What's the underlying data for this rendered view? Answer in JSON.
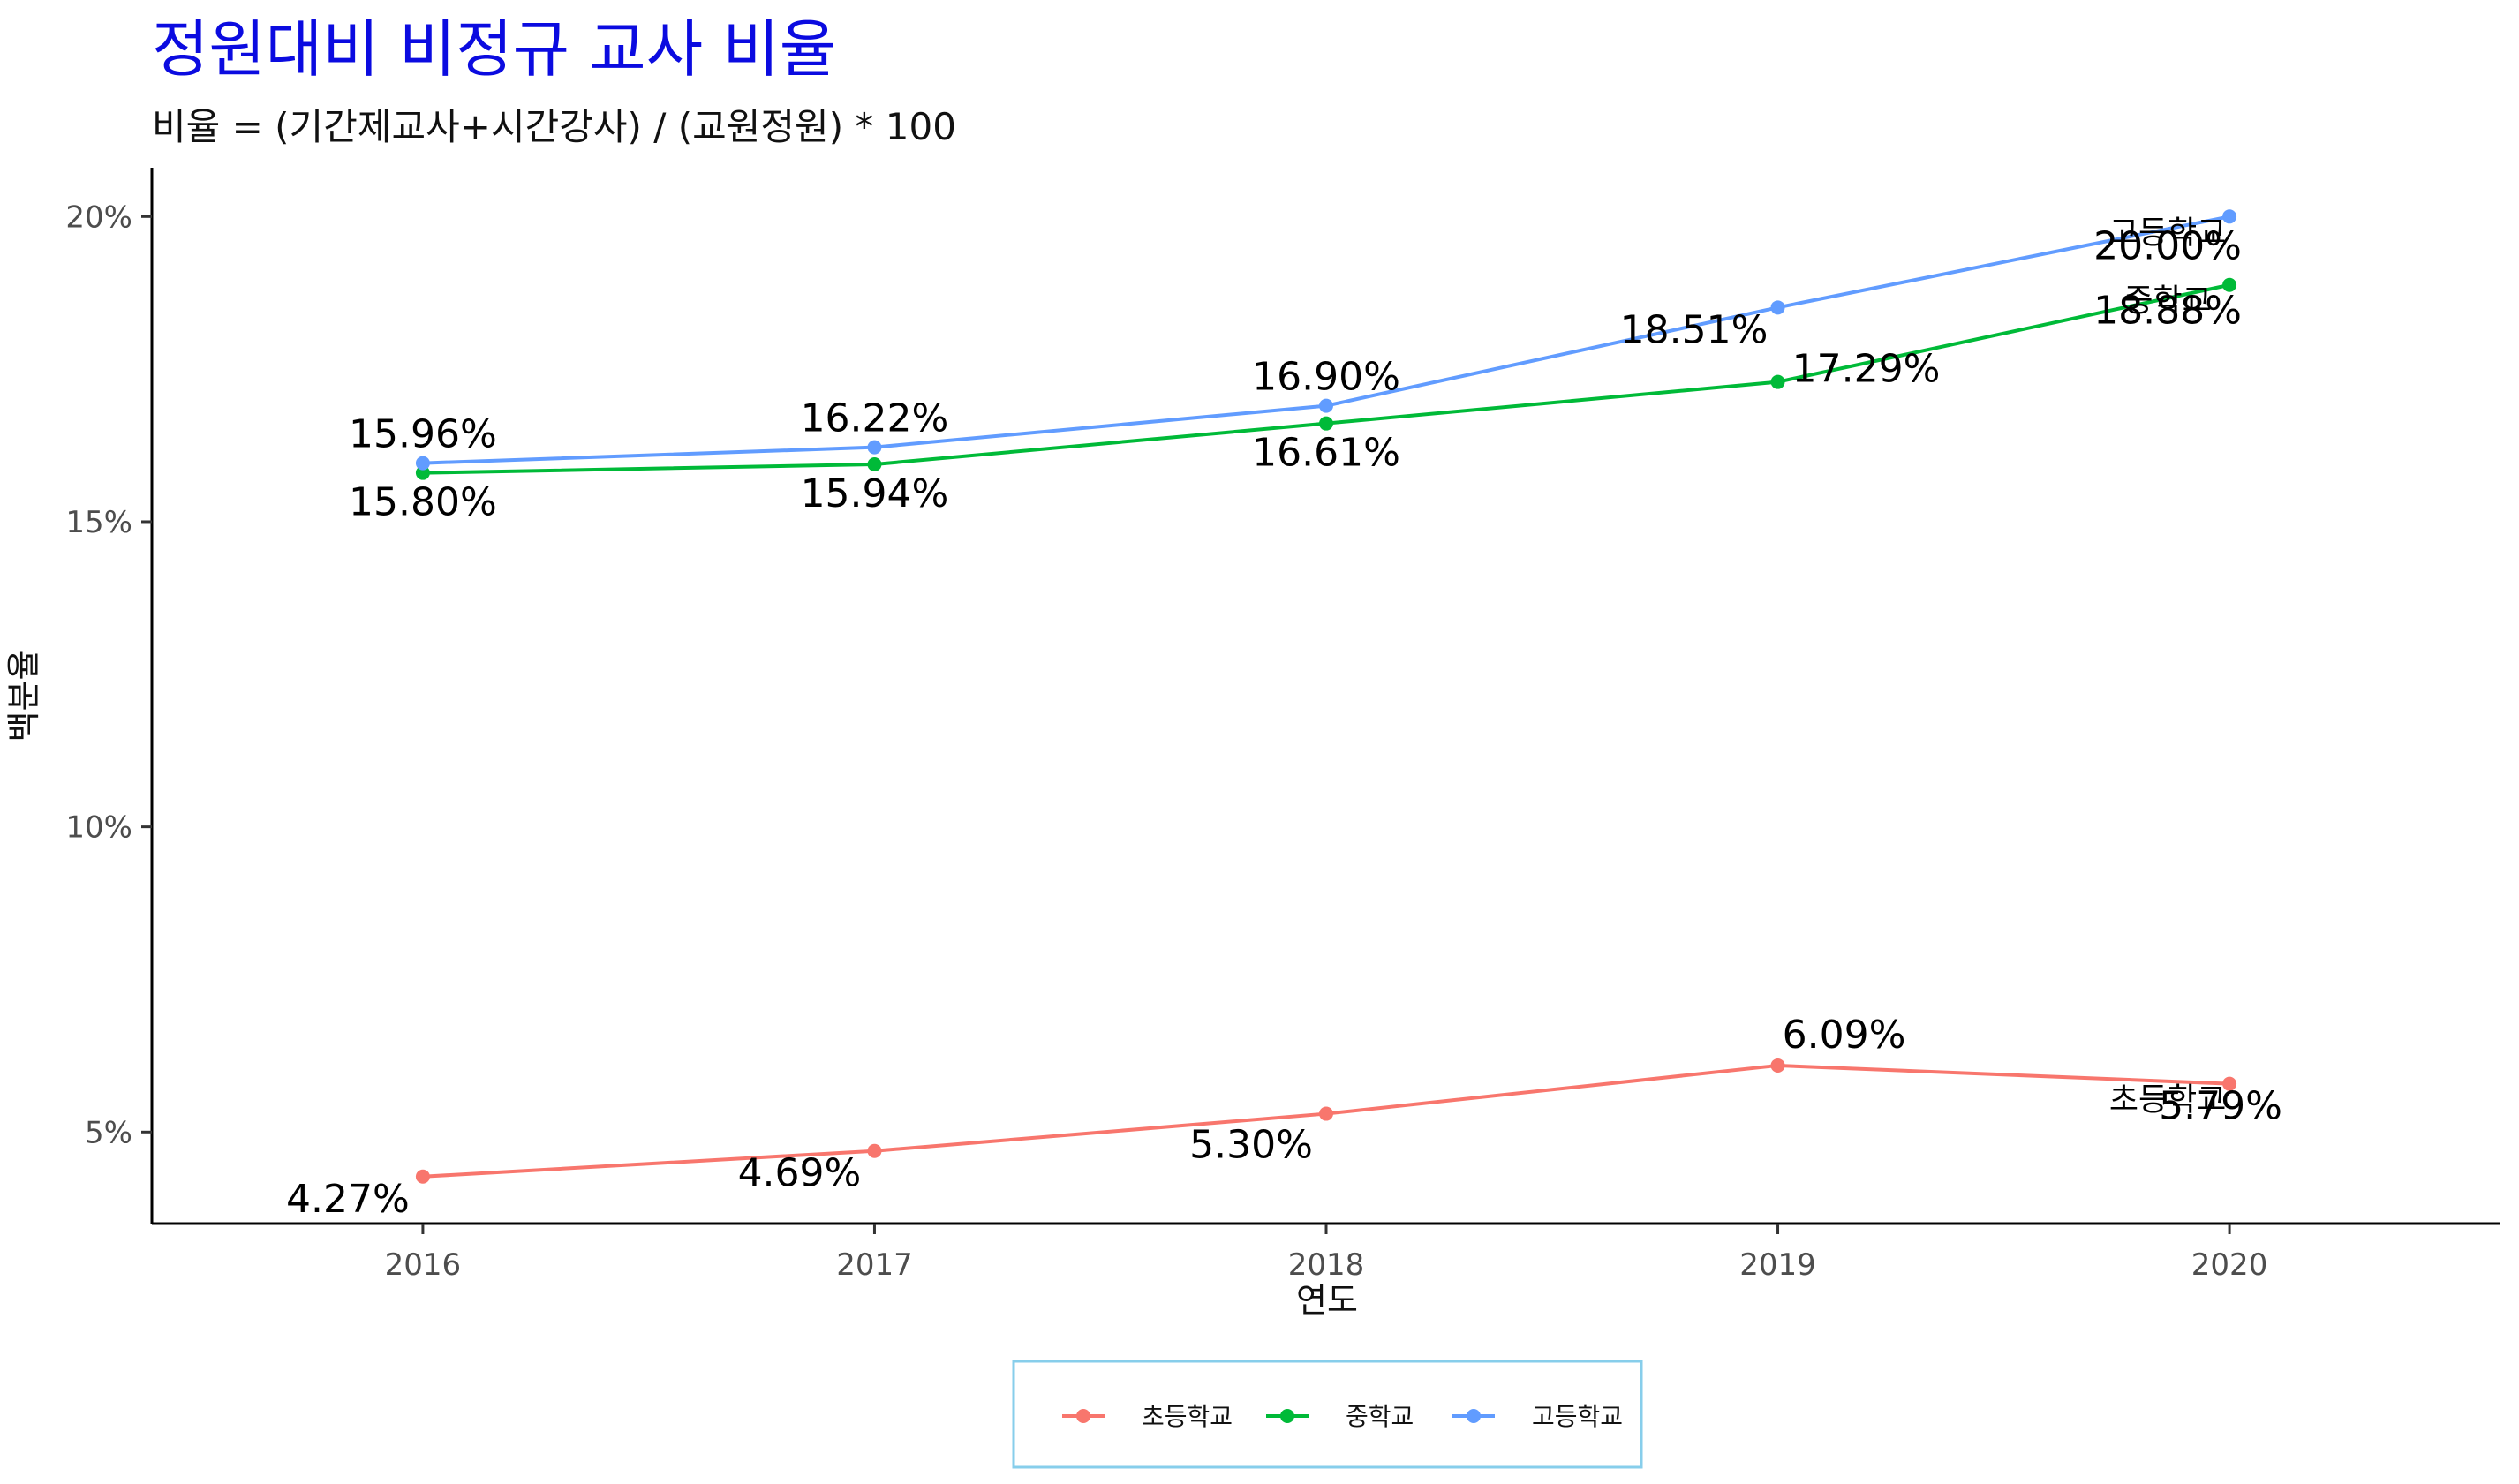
{
  "chart_data": {
    "type": "line",
    "title": "정원대비 비정규 교사 비율",
    "subtitle": "비율 = (기간제교사+시간강사) / (교원정원) * 100",
    "xlabel": "연도",
    "ylabel": "백분율",
    "x": [
      2016,
      2017,
      2018,
      2019,
      2020
    ],
    "xlim": [
      2015.4,
      2020.6
    ],
    "ylim": [
      3.5,
      20.8
    ],
    "y_ticks": [
      5,
      10,
      15,
      20
    ],
    "y_tick_labels": [
      "5%",
      "10%",
      "15%",
      "20%"
    ],
    "grid": false,
    "legend_position": "bottom",
    "series": [
      {
        "name": "초등학교",
        "color": "#f8766d",
        "values": [
          4.27,
          4.69,
          5.3,
          6.09,
          5.79
        ],
        "labels": [
          "4.27%",
          "4.69%",
          "5.30%",
          "6.09%",
          "5.79%"
        ]
      },
      {
        "name": "중학교",
        "color": "#00ba38",
        "values": [
          15.8,
          15.94,
          16.61,
          17.29,
          18.88
        ],
        "labels": [
          "15.80%",
          "15.94%",
          "16.61%",
          "17.29%",
          "18.88%"
        ]
      },
      {
        "name": "고등학교",
        "color": "#619cff",
        "values": [
          15.96,
          16.22,
          16.9,
          18.51,
          20.0
        ],
        "labels": [
          "15.96%",
          "16.22%",
          "16.90%",
          "18.51%",
          "20.00%"
        ]
      }
    ]
  }
}
